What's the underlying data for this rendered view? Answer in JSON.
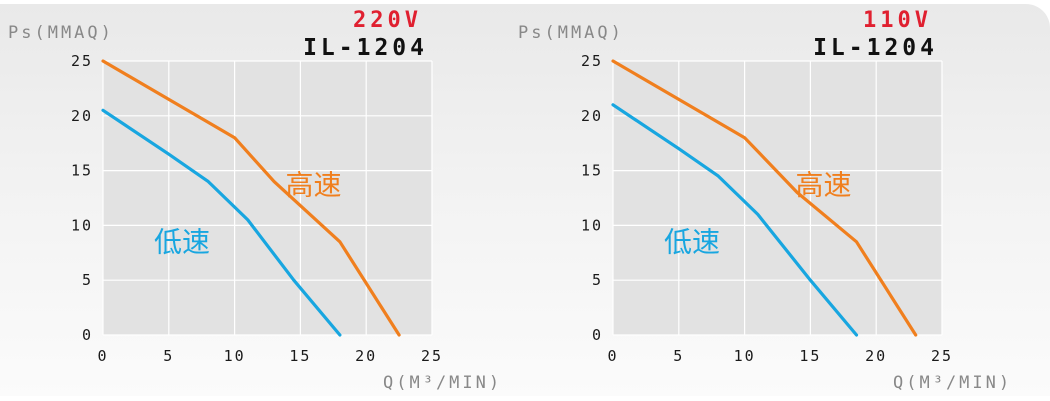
{
  "colors": {
    "high": "#f07f1e",
    "low": "#18a6e0",
    "voltage": "#e02030",
    "axis_title": "#888888",
    "grid": "#ffffff",
    "plot_bg": "#e2e2e2"
  },
  "chart_data": [
    {
      "type": "line",
      "voltage": "220V",
      "model": "IL-1204",
      "xlabel": "Q(M³/MIN)",
      "ylabel": "Ps(MMAQ)",
      "xlim": [
        0,
        25
      ],
      "ylim": [
        0,
        25
      ],
      "xticks": [
        "0",
        "5",
        "10",
        "15",
        "20",
        "25"
      ],
      "yticks": [
        "0",
        "5",
        "10",
        "15",
        "20",
        "25"
      ],
      "grid": true,
      "series": [
        {
          "name": "高速",
          "color_key": "high",
          "label_at": [
            16.0,
            12.8
          ],
          "points": [
            [
              0,
              25
            ],
            [
              5,
              21.5
            ],
            [
              10,
              18
            ],
            [
              13,
              14
            ],
            [
              18,
              8.5
            ],
            [
              22.5,
              0
            ]
          ]
        },
        {
          "name": "低速",
          "color_key": "low",
          "label_at": [
            6.0,
            7.6
          ],
          "points": [
            [
              0,
              20.5
            ],
            [
              5,
              16.5
            ],
            [
              8,
              14
            ],
            [
              11,
              10.5
            ],
            [
              14.5,
              5
            ],
            [
              18,
              0
            ]
          ]
        }
      ]
    },
    {
      "type": "line",
      "voltage": "110V",
      "model": "IL-1204",
      "xlabel": "Q(M³/MIN)",
      "ylabel": "Ps(MMAQ)",
      "xlim": [
        0,
        25
      ],
      "ylim": [
        0,
        25
      ],
      "xticks": [
        "0",
        "5",
        "10",
        "15",
        "20",
        "25"
      ],
      "yticks": [
        "0",
        "5",
        "10",
        "15",
        "20",
        "25"
      ],
      "grid": true,
      "series": [
        {
          "name": "高速",
          "color_key": "high",
          "label_at": [
            16.0,
            12.8
          ],
          "points": [
            [
              0,
              25
            ],
            [
              5,
              21.5
            ],
            [
              10,
              18
            ],
            [
              14,
              13
            ],
            [
              18.5,
              8.5
            ],
            [
              23,
              0
            ]
          ]
        },
        {
          "name": "低速",
          "color_key": "low",
          "label_at": [
            6.0,
            7.6
          ],
          "points": [
            [
              0,
              21
            ],
            [
              5,
              17
            ],
            [
              8,
              14.5
            ],
            [
              11,
              11
            ],
            [
              15,
              5
            ],
            [
              18.5,
              0
            ]
          ]
        }
      ]
    }
  ]
}
